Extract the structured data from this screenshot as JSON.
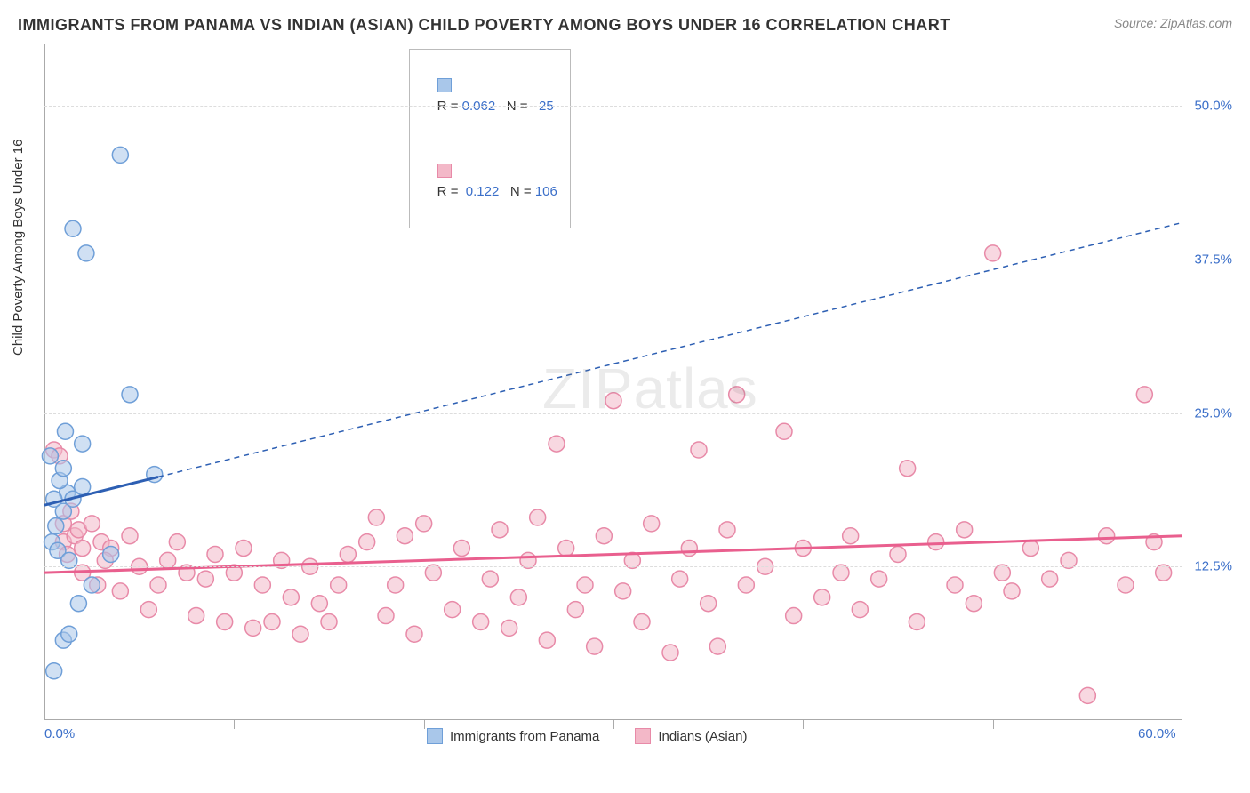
{
  "title": "IMMIGRANTS FROM PANAMA VS INDIAN (ASIAN) CHILD POVERTY AMONG BOYS UNDER 16 CORRELATION CHART",
  "source": "Source: ZipAtlas.com",
  "y_axis_label": "Child Poverty Among Boys Under 16",
  "watermark": "ZIPatlas",
  "chart": {
    "type": "scatter",
    "xlim": [
      0,
      60
    ],
    "ylim": [
      0,
      55
    ],
    "y_ticks": [
      12.5,
      25.0,
      37.5,
      50.0
    ],
    "y_tick_labels": [
      "12.5%",
      "25.0%",
      "37.5%",
      "50.0%"
    ],
    "x_tick_labels": {
      "min": "0.0%",
      "max": "60.0%"
    },
    "x_minor_ticks": [
      10,
      20,
      30,
      40,
      50
    ],
    "background_color": "#ffffff",
    "grid_color": "#dddddd",
    "axis_color": "#aaaaaa",
    "marker_radius": 9,
    "marker_stroke_width": 1.5,
    "trend_solid_width": 3,
    "trend_dash_width": 1.5,
    "trend_dash_pattern": "6,5"
  },
  "series": {
    "panama": {
      "label": "Immigrants from Panama",
      "fill": "#a9c7ea",
      "fill_opacity": 0.55,
      "stroke": "#6f9fd8",
      "R": "0.062",
      "N": "25",
      "trend_color": "#2d5fb3",
      "trend": {
        "x1": 0,
        "y1": 17.5,
        "x2": 60,
        "y2": 40.5,
        "solid_until_x": 6
      },
      "points": [
        [
          1.0,
          17.0
        ],
        [
          1.2,
          18.5
        ],
        [
          0.5,
          18.0
        ],
        [
          0.8,
          19.5
        ],
        [
          1.5,
          18.0
        ],
        [
          1.0,
          20.5
        ],
        [
          2.0,
          19.0
        ],
        [
          0.6,
          15.8
        ],
        [
          0.4,
          14.5
        ],
        [
          0.7,
          13.8
        ],
        [
          1.3,
          13.0
        ],
        [
          2.5,
          11.0
        ],
        [
          1.8,
          9.5
        ],
        [
          3.5,
          13.5
        ],
        [
          5.8,
          20.0
        ],
        [
          4.5,
          26.5
        ],
        [
          2.2,
          38.0
        ],
        [
          1.5,
          40.0
        ],
        [
          4.0,
          46.0
        ],
        [
          2.0,
          22.5
        ],
        [
          1.0,
          6.5
        ],
        [
          1.3,
          7.0
        ],
        [
          0.5,
          4.0
        ],
        [
          0.3,
          21.5
        ],
        [
          1.1,
          23.5
        ]
      ]
    },
    "indians": {
      "label": "Indians (Asian)",
      "fill": "#f3b8c8",
      "fill_opacity": 0.55,
      "stroke": "#e88aa8",
      "R": "0.122",
      "N": "106",
      "trend_color": "#e95f8e",
      "trend": {
        "x1": 0,
        "y1": 12.0,
        "x2": 60,
        "y2": 15.0,
        "solid_until_x": 60
      },
      "points": [
        [
          0.5,
          22.0
        ],
        [
          0.8,
          21.5
        ],
        [
          1.0,
          16.0
        ],
        [
          1.4,
          17.0
        ],
        [
          1.0,
          14.5
        ],
        [
          1.6,
          15.0
        ],
        [
          1.2,
          13.5
        ],
        [
          2.0,
          14.0
        ],
        [
          1.8,
          15.5
        ],
        [
          2.5,
          16.0
        ],
        [
          2.0,
          12.0
        ],
        [
          3.0,
          14.5
        ],
        [
          2.8,
          11.0
        ],
        [
          3.5,
          14.0
        ],
        [
          3.2,
          13.0
        ],
        [
          4.0,
          10.5
        ],
        [
          4.5,
          15.0
        ],
        [
          5.0,
          12.5
        ],
        [
          5.5,
          9.0
        ],
        [
          6.0,
          11.0
        ],
        [
          6.5,
          13.0
        ],
        [
          7.0,
          14.5
        ],
        [
          7.5,
          12.0
        ],
        [
          8.0,
          8.5
        ],
        [
          8.5,
          11.5
        ],
        [
          9.0,
          13.5
        ],
        [
          9.5,
          8.0
        ],
        [
          10.0,
          12.0
        ],
        [
          10.5,
          14.0
        ],
        [
          11.0,
          7.5
        ],
        [
          11.5,
          11.0
        ],
        [
          12.0,
          8.0
        ],
        [
          12.5,
          13.0
        ],
        [
          13.0,
          10.0
        ],
        [
          13.5,
          7.0
        ],
        [
          14.0,
          12.5
        ],
        [
          14.5,
          9.5
        ],
        [
          15.0,
          8.0
        ],
        [
          15.5,
          11.0
        ],
        [
          16.0,
          13.5
        ],
        [
          17.0,
          14.5
        ],
        [
          17.5,
          16.5
        ],
        [
          18.0,
          8.5
        ],
        [
          18.5,
          11.0
        ],
        [
          19.0,
          15.0
        ],
        [
          19.5,
          7.0
        ],
        [
          20.0,
          16.0
        ],
        [
          20.5,
          12.0
        ],
        [
          21.5,
          9.0
        ],
        [
          22.0,
          14.0
        ],
        [
          23.0,
          8.0
        ],
        [
          23.5,
          11.5
        ],
        [
          24.0,
          15.5
        ],
        [
          24.5,
          7.5
        ],
        [
          25.0,
          10.0
        ],
        [
          25.5,
          13.0
        ],
        [
          26.0,
          16.5
        ],
        [
          26.5,
          6.5
        ],
        [
          27.0,
          22.5
        ],
        [
          27.5,
          14.0
        ],
        [
          28.0,
          9.0
        ],
        [
          28.5,
          11.0
        ],
        [
          29.0,
          6.0
        ],
        [
          29.5,
          15.0
        ],
        [
          30.0,
          26.0
        ],
        [
          30.5,
          10.5
        ],
        [
          31.0,
          13.0
        ],
        [
          31.5,
          8.0
        ],
        [
          32.0,
          16.0
        ],
        [
          33.0,
          5.5
        ],
        [
          33.5,
          11.5
        ],
        [
          34.0,
          14.0
        ],
        [
          34.5,
          22.0
        ],
        [
          35.0,
          9.5
        ],
        [
          35.5,
          6.0
        ],
        [
          36.0,
          15.5
        ],
        [
          36.5,
          26.5
        ],
        [
          37.0,
          11.0
        ],
        [
          38.0,
          12.5
        ],
        [
          39.0,
          23.5
        ],
        [
          39.5,
          8.5
        ],
        [
          40.0,
          14.0
        ],
        [
          41.0,
          10.0
        ],
        [
          42.0,
          12.0
        ],
        [
          42.5,
          15.0
        ],
        [
          43.0,
          9.0
        ],
        [
          44.0,
          11.5
        ],
        [
          45.0,
          13.5
        ],
        [
          45.5,
          20.5
        ],
        [
          46.0,
          8.0
        ],
        [
          47.0,
          14.5
        ],
        [
          48.0,
          11.0
        ],
        [
          48.5,
          15.5
        ],
        [
          49.0,
          9.5
        ],
        [
          50.0,
          38.0
        ],
        [
          50.5,
          12.0
        ],
        [
          51.0,
          10.5
        ],
        [
          52.0,
          14.0
        ],
        [
          53.0,
          11.5
        ],
        [
          54.0,
          13.0
        ],
        [
          55.0,
          2.0
        ],
        [
          56.0,
          15.0
        ],
        [
          57.0,
          11.0
        ],
        [
          58.0,
          26.5
        ],
        [
          58.5,
          14.5
        ],
        [
          59.0,
          12.0
        ]
      ]
    }
  },
  "stats_labels": {
    "R": "R",
    "N": "N",
    "eq": "="
  },
  "colors": {
    "tick_label": "#3b6fc9",
    "text": "#333333",
    "muted": "#888888"
  }
}
